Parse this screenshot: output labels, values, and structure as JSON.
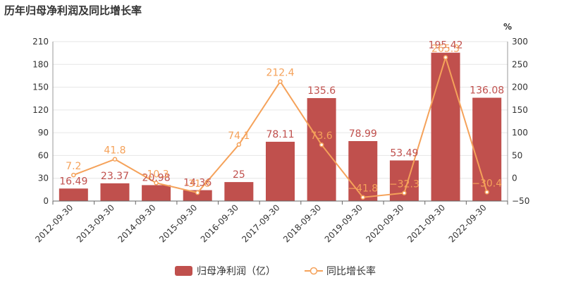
{
  "title": "历年归母净利润及同比增长率",
  "chart_data": {
    "type": "bar",
    "title": "历年归母净利润及同比增长率",
    "categories": [
      "2012-09-30",
      "2013-09-30",
      "2014-09-30",
      "2015-09-30",
      "2016-09-30",
      "2017-09-30",
      "2018-09-30",
      "2019-09-30",
      "2020-09-30",
      "2021-09-30",
      "2022-09-30"
    ],
    "series": [
      {
        "name": "归母净利润（亿）",
        "type": "bar",
        "axis": "left",
        "values": [
          16.49,
          23.37,
          20.98,
          14.36,
          25,
          78.11,
          135.6,
          78.99,
          53.49,
          195.42,
          136.08
        ],
        "labels": [
          "16.49",
          "23.37",
          "20.98",
          "14.36",
          "25",
          "78.11",
          "135.6",
          "78.99",
          "53.49",
          "195.42",
          "136.08"
        ]
      },
      {
        "name": "同比增长率",
        "type": "line",
        "axis": "right",
        "values": [
          7.2,
          41.8,
          -10.3,
          -31.6,
          74.1,
          212.4,
          73.6,
          -41.8,
          -32.3,
          265.3,
          -30.4
        ],
        "labels": [
          "7.2",
          "41.8",
          "-10.3",
          "-31.6",
          "74.1",
          "212.4",
          "73.6",
          "−41.8",
          "−32.3",
          "265.3",
          "−30.4"
        ]
      }
    ],
    "y_left": {
      "ylim": [
        0,
        210
      ],
      "ticks": [
        "0",
        "30",
        "60",
        "90",
        "120",
        "150",
        "180",
        "210"
      ]
    },
    "y_right": {
      "ylim": [
        -50,
        300
      ],
      "ticks": [
        "−50",
        "0",
        "50",
        "100",
        "150",
        "200",
        "250",
        "300"
      ],
      "unit": "%"
    },
    "grid": true,
    "legend_position": "bottom",
    "colors": {
      "bar": "#c0504d",
      "bar_label": "#c0504d",
      "line": "#f5a25a",
      "line_label": "#f5a25a",
      "grid": "#e6e6e6",
      "axis_text": "#333333"
    }
  }
}
